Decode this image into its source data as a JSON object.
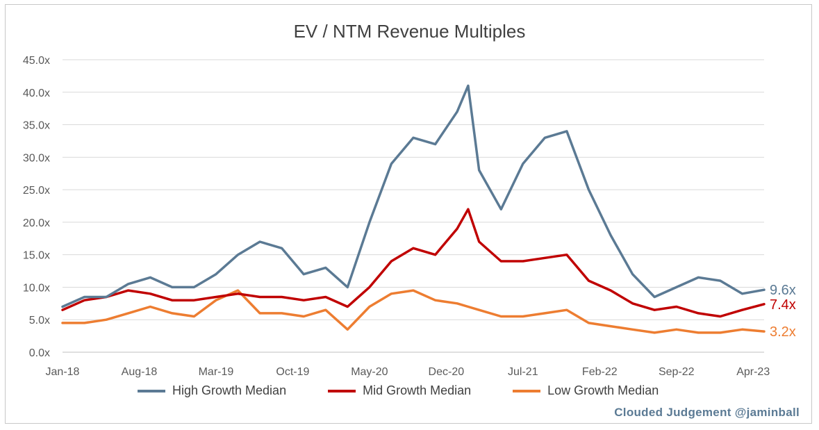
{
  "chart_data": {
    "type": "line",
    "title": "EV / NTM Revenue Multiples",
    "xlabel": "",
    "ylabel": "",
    "ylim": [
      0,
      45
    ],
    "y_ticks": [
      "0.0x",
      "5.0x",
      "10.0x",
      "15.0x",
      "20.0x",
      "25.0x",
      "30.0x",
      "35.0x",
      "40.0x",
      "45.0x"
    ],
    "x_ticks": [
      "Jan-18",
      "Aug-18",
      "Mar-19",
      "Oct-19",
      "May-20",
      "Dec-20",
      "Jul-21",
      "Feb-22",
      "Sep-22",
      "Apr-23"
    ],
    "grid": true,
    "legend_position": "bottom",
    "x": [
      "2018-01",
      "2018-03",
      "2018-05",
      "2018-07",
      "2018-09",
      "2018-11",
      "2019-01",
      "2019-03",
      "2019-05",
      "2019-07",
      "2019-09",
      "2019-11",
      "2020-01",
      "2020-03",
      "2020-05",
      "2020-07",
      "2020-09",
      "2020-11",
      "2021-01",
      "2021-02",
      "2021-03",
      "2021-05",
      "2021-07",
      "2021-09",
      "2021-11",
      "2022-01",
      "2022-03",
      "2022-05",
      "2022-07",
      "2022-09",
      "2022-11",
      "2023-01",
      "2023-03",
      "2023-05"
    ],
    "series": [
      {
        "name": "High Growth Median",
        "color": "#5b7a94",
        "values": [
          7.0,
          8.5,
          8.5,
          10.5,
          11.5,
          10.0,
          10.0,
          12.0,
          15.0,
          17.0,
          16.0,
          12.0,
          13.0,
          10.0,
          20.0,
          29.0,
          33.0,
          32.0,
          37.0,
          41.0,
          28.0,
          22.0,
          29.0,
          33.0,
          34.0,
          25.0,
          18.0,
          12.0,
          8.5,
          10.0,
          11.5,
          11.0,
          9.0,
          9.6
        ],
        "end_label": "9.6x"
      },
      {
        "name": "Mid Growth Median",
        "color": "#c00000",
        "values": [
          6.5,
          8.0,
          8.5,
          9.5,
          9.0,
          8.0,
          8.0,
          8.5,
          9.0,
          8.5,
          8.5,
          8.0,
          8.5,
          7.0,
          10.0,
          14.0,
          16.0,
          15.0,
          19.0,
          22.0,
          17.0,
          14.0,
          14.0,
          14.5,
          15.0,
          11.0,
          9.5,
          7.5,
          6.5,
          7.0,
          6.0,
          5.5,
          6.5,
          7.4
        ],
        "end_label": "7.4x"
      },
      {
        "name": "Low Growth Median",
        "color": "#ed7d31",
        "values": [
          4.5,
          4.5,
          5.0,
          6.0,
          7.0,
          6.0,
          5.5,
          8.0,
          9.5,
          6.0,
          6.0,
          5.5,
          6.5,
          3.5,
          7.0,
          9.0,
          9.5,
          8.0,
          7.5,
          7.0,
          6.5,
          5.5,
          5.5,
          6.0,
          6.5,
          4.5,
          4.0,
          3.5,
          3.0,
          3.5,
          3.0,
          3.0,
          3.5,
          3.2
        ],
        "end_label": "3.2x"
      }
    ]
  },
  "footer": {
    "credit": "Clouded Judgement @jaminball"
  }
}
